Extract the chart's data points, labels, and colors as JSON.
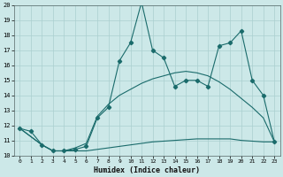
{
  "xlabel": "Humidex (Indice chaleur)",
  "bg_color": "#cce8e8",
  "grid_color": "#aacfcf",
  "line_color": "#1a6b6b",
  "xlim": [
    -0.5,
    23.5
  ],
  "ylim": [
    10,
    20
  ],
  "yticks": [
    10,
    11,
    12,
    13,
    14,
    15,
    16,
    17,
    18,
    19,
    20
  ],
  "xticks": [
    0,
    1,
    2,
    3,
    4,
    5,
    6,
    7,
    8,
    9,
    10,
    11,
    12,
    13,
    14,
    15,
    16,
    17,
    18,
    19,
    20,
    21,
    22,
    23
  ],
  "main_x": [
    0,
    1,
    2,
    3,
    4,
    5,
    6,
    7,
    8,
    9,
    10,
    11,
    12,
    13,
    14,
    15,
    16,
    17,
    18,
    19,
    20,
    21,
    22,
    23
  ],
  "main_y": [
    11.8,
    11.6,
    10.7,
    10.3,
    10.3,
    10.4,
    10.6,
    12.5,
    13.2,
    16.3,
    17.5,
    20.2,
    17.0,
    16.5,
    14.6,
    15.0,
    15.0,
    14.6,
    17.3,
    17.5,
    18.3,
    15.0,
    14.0,
    10.9
  ],
  "upper_x": [
    0,
    2,
    3,
    4,
    5,
    6,
    7,
    8,
    9,
    10,
    11,
    12,
    13,
    14,
    15,
    16,
    17,
    18,
    19,
    20,
    21,
    22,
    23
  ],
  "upper_y": [
    11.8,
    10.7,
    10.3,
    10.3,
    10.5,
    10.8,
    12.6,
    13.4,
    14.0,
    14.4,
    14.8,
    15.1,
    15.3,
    15.5,
    15.6,
    15.5,
    15.3,
    14.9,
    14.4,
    13.8,
    13.2,
    12.5,
    10.9
  ],
  "lower_x": [
    0,
    2,
    3,
    4,
    5,
    6,
    7,
    8,
    9,
    10,
    11,
    12,
    13,
    14,
    15,
    16,
    17,
    18,
    19,
    20,
    21,
    22,
    23
  ],
  "lower_y": [
    11.8,
    10.7,
    10.3,
    10.3,
    10.3,
    10.3,
    10.4,
    10.5,
    10.6,
    10.7,
    10.8,
    10.9,
    10.95,
    11.0,
    11.05,
    11.1,
    11.1,
    11.1,
    11.1,
    11.0,
    10.95,
    10.9,
    10.9
  ]
}
